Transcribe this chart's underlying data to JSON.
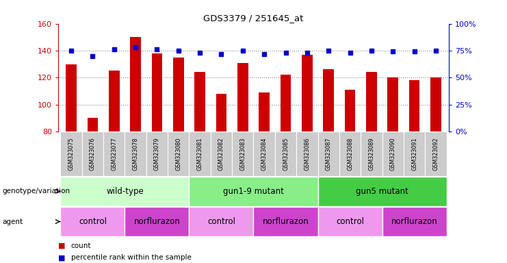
{
  "title": "GDS3379 / 251645_at",
  "samples": [
    "GSM323075",
    "GSM323076",
    "GSM323077",
    "GSM323078",
    "GSM323079",
    "GSM323080",
    "GSM323081",
    "GSM323082",
    "GSM323083",
    "GSM323084",
    "GSM323085",
    "GSM323086",
    "GSM323087",
    "GSM323088",
    "GSM323089",
    "GSM323090",
    "GSM323091",
    "GSM323092"
  ],
  "counts": [
    130,
    90,
    125,
    150,
    138,
    135,
    124,
    108,
    131,
    109,
    122,
    137,
    126,
    111,
    124,
    120,
    118,
    120
  ],
  "percentile_ranks": [
    75,
    70,
    76,
    78,
    76,
    75,
    73,
    72,
    75,
    72,
    73,
    73,
    75,
    73,
    75,
    74,
    74,
    75
  ],
  "ylim_left": [
    80,
    160
  ],
  "ylim_right": [
    0,
    100
  ],
  "yticks_left": [
    80,
    100,
    120,
    140,
    160
  ],
  "yticks_right": [
    0,
    25,
    50,
    75,
    100
  ],
  "bar_color": "#cc0000",
  "dot_color": "#0000cc",
  "grid_color": "#888888",
  "genotype_groups": [
    {
      "label": "wild-type",
      "start": 0,
      "end": 5,
      "color": "#ccffcc"
    },
    {
      "label": "gun1-9 mutant",
      "start": 6,
      "end": 11,
      "color": "#88ee88"
    },
    {
      "label": "gun5 mutant",
      "start": 12,
      "end": 17,
      "color": "#44cc44"
    }
  ],
  "agent_groups": [
    {
      "label": "control",
      "start": 0,
      "end": 2,
      "color": "#ee99ee"
    },
    {
      "label": "norflurazon",
      "start": 3,
      "end": 5,
      "color": "#cc44cc"
    },
    {
      "label": "control",
      "start": 6,
      "end": 8,
      "color": "#ee99ee"
    },
    {
      "label": "norflurazon",
      "start": 9,
      "end": 11,
      "color": "#cc44cc"
    },
    {
      "label": "control",
      "start": 12,
      "end": 14,
      "color": "#ee99ee"
    },
    {
      "label": "norflurazon",
      "start": 15,
      "end": 17,
      "color": "#cc44cc"
    }
  ],
  "legend_count_color": "#cc0000",
  "legend_dot_color": "#0000cc",
  "right_axis_color": "#0000cc",
  "left_axis_color": "#cc0000",
  "tick_label_bg": "#cccccc",
  "bar_width": 0.5,
  "xlim": [
    -0.6,
    17.6
  ]
}
